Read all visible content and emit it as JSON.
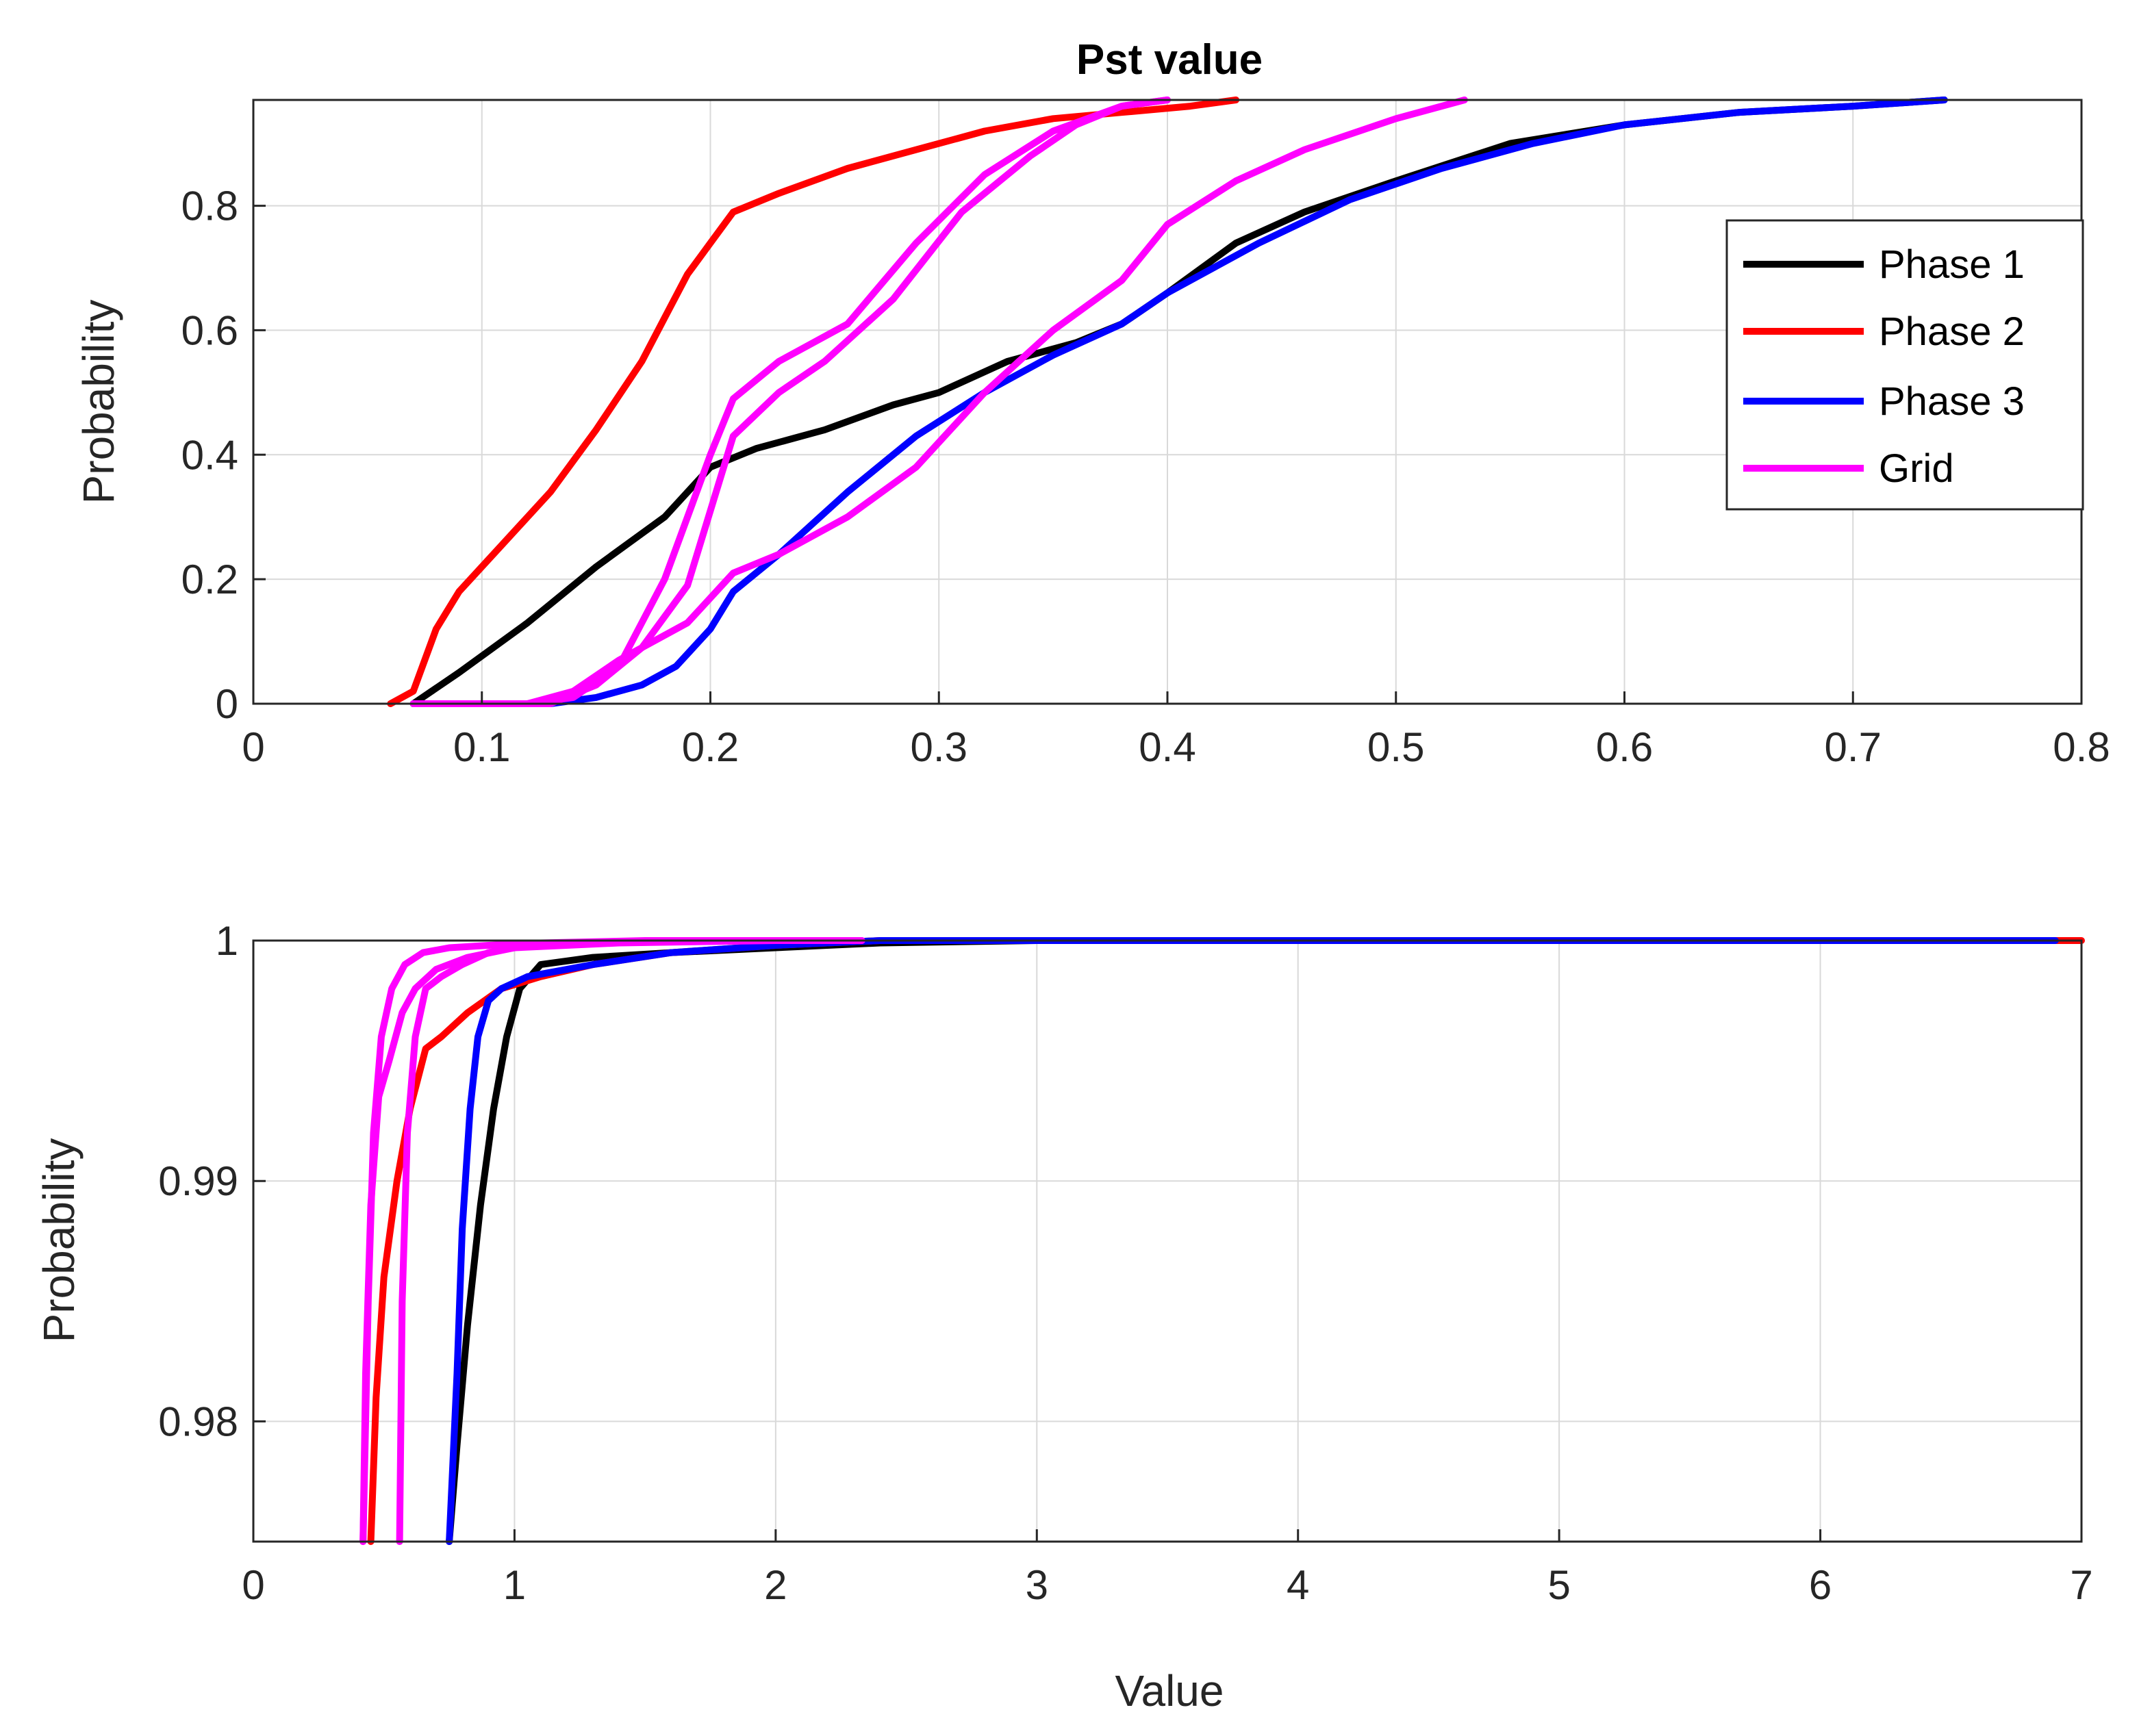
{
  "chart_data": [
    {
      "type": "line",
      "title": "Pst value",
      "xlabel": "",
      "ylabel": "Probability",
      "xlim": [
        0,
        0.8
      ],
      "ylim": [
        0,
        0.97
      ],
      "grid": true,
      "xticks": [
        0,
        0.1,
        0.2,
        0.3,
        0.4,
        0.5,
        0.6,
        0.7,
        0.8
      ],
      "xtick_labels": [
        "0",
        "0.1",
        "0.2",
        "0.3",
        "0.4",
        "0.5",
        "0.6",
        "0.7",
        "0.8"
      ],
      "yticks": [
        0,
        0.2,
        0.4,
        0.6,
        0.8
      ],
      "ytick_labels": [
        "0",
        "0.2",
        "0.4",
        "0.6",
        "0.8"
      ],
      "legend": {
        "location": "right",
        "entries": [
          "Phase 1",
          "Phase 2",
          "Phase 3",
          "Grid"
        ]
      },
      "series": [
        {
          "name": "Phase 1",
          "color": "#000000",
          "legend": true,
          "x": [
            0.07,
            0.09,
            0.12,
            0.15,
            0.18,
            0.2,
            0.22,
            0.25,
            0.28,
            0.3,
            0.33,
            0.36,
            0.38,
            0.4,
            0.43,
            0.46,
            0.5,
            0.55,
            0.6,
            0.65,
            0.7,
            0.74
          ],
          "y": [
            0,
            0.05,
            0.13,
            0.22,
            0.3,
            0.38,
            0.41,
            0.44,
            0.48,
            0.5,
            0.55,
            0.58,
            0.61,
            0.66,
            0.74,
            0.79,
            0.84,
            0.9,
            0.93,
            0.95,
            0.96,
            0.97
          ]
        },
        {
          "name": "Phase 2",
          "color": "#ff0000",
          "legend": true,
          "x": [
            0.06,
            0.07,
            0.08,
            0.09,
            0.11,
            0.13,
            0.15,
            0.17,
            0.18,
            0.19,
            0.2,
            0.21,
            0.23,
            0.26,
            0.29,
            0.32,
            0.35,
            0.38,
            0.41,
            0.43
          ],
          "y": [
            0,
            0.02,
            0.12,
            0.18,
            0.26,
            0.34,
            0.44,
            0.55,
            0.62,
            0.69,
            0.74,
            0.79,
            0.82,
            0.86,
            0.89,
            0.92,
            0.94,
            0.95,
            0.96,
            0.97
          ]
        },
        {
          "name": "Phase 3",
          "color": "#0000ff",
          "legend": true,
          "x": [
            0.07,
            0.1,
            0.13,
            0.15,
            0.17,
            0.185,
            0.2,
            0.21,
            0.23,
            0.26,
            0.29,
            0.32,
            0.35,
            0.38,
            0.4,
            0.44,
            0.48,
            0.52,
            0.56,
            0.6,
            0.65,
            0.7,
            0.74
          ],
          "y": [
            0,
            0,
            0,
            0.01,
            0.03,
            0.06,
            0.12,
            0.18,
            0.24,
            0.34,
            0.43,
            0.5,
            0.56,
            0.61,
            0.66,
            0.74,
            0.81,
            0.86,
            0.9,
            0.93,
            0.95,
            0.96,
            0.97
          ]
        },
        {
          "name": "Grid",
          "color": "#ff00ff",
          "legend": true,
          "x": [
            0.07,
            0.12,
            0.14,
            0.16,
            0.18,
            0.2,
            0.21,
            0.23,
            0.26,
            0.29,
            0.32,
            0.35,
            0.38,
            0.4
          ],
          "y": [
            0,
            0,
            0.01,
            0.06,
            0.2,
            0.4,
            0.49,
            0.55,
            0.61,
            0.74,
            0.85,
            0.92,
            0.96,
            0.97
          ]
        },
        {
          "name": "Grid",
          "color": "#ff00ff",
          "legend": false,
          "x": [
            0.07,
            0.13,
            0.15,
            0.17,
            0.19,
            0.21,
            0.23,
            0.25,
            0.28,
            0.31,
            0.34,
            0.36,
            0.38,
            0.4
          ],
          "y": [
            0,
            0,
            0.03,
            0.09,
            0.19,
            0.43,
            0.5,
            0.55,
            0.65,
            0.79,
            0.88,
            0.93,
            0.96,
            0.97
          ]
        },
        {
          "name": "Grid",
          "color": "#ff00ff",
          "legend": false,
          "x": [
            0.07,
            0.12,
            0.14,
            0.16,
            0.19,
            0.21,
            0.23,
            0.26,
            0.29,
            0.32,
            0.35,
            0.38,
            0.4,
            0.43,
            0.46,
            0.5,
            0.53
          ],
          "y": [
            0,
            0,
            0.02,
            0.07,
            0.13,
            0.21,
            0.24,
            0.3,
            0.38,
            0.5,
            0.6,
            0.68,
            0.77,
            0.84,
            0.89,
            0.94,
            0.97
          ]
        }
      ]
    },
    {
      "type": "line",
      "title": "",
      "xlabel": "Value",
      "ylabel": "Probability",
      "xlim": [
        0,
        7
      ],
      "ylim": [
        0.975,
        1.0
      ],
      "grid": true,
      "xticks": [
        0,
        1,
        2,
        3,
        4,
        5,
        6,
        7
      ],
      "xtick_labels": [
        "0",
        "1",
        "2",
        "3",
        "4",
        "5",
        "6",
        "7"
      ],
      "yticks": [
        0.98,
        0.99,
        1.0
      ],
      "ytick_labels": [
        "0.98",
        "0.99",
        "1"
      ],
      "series": [
        {
          "name": "Phase 1",
          "color": "#000000",
          "x": [
            0.75,
            0.78,
            0.82,
            0.87,
            0.92,
            0.97,
            1.02,
            1.1,
            1.3,
            1.6,
            2.0,
            2.4,
            3.0,
            4.0,
            6.95
          ],
          "y": [
            0.975,
            0.979,
            0.984,
            0.989,
            0.993,
            0.996,
            0.998,
            0.999,
            0.9993,
            0.9995,
            0.9997,
            0.9999,
            1.0,
            1.0,
            1.0
          ]
        },
        {
          "name": "Phase 2",
          "color": "#ff0000",
          "x": [
            0.45,
            0.47,
            0.5,
            0.55,
            0.6,
            0.66,
            0.72,
            0.82,
            0.95,
            1.1,
            1.3,
            1.6,
            2.0,
            2.4,
            3.0,
            7.0
          ],
          "y": [
            0.975,
            0.981,
            0.986,
            0.99,
            0.993,
            0.9955,
            0.996,
            0.997,
            0.998,
            0.9985,
            0.999,
            0.9995,
            0.9998,
            1.0,
            1.0,
            1.0
          ]
        },
        {
          "name": "Phase 3",
          "color": "#0000ff",
          "x": [
            0.75,
            0.78,
            0.8,
            0.83,
            0.86,
            0.9,
            0.95,
            1.05,
            1.3,
            1.6,
            2.0,
            2.4,
            3.0,
            4.0,
            6.9
          ],
          "y": [
            0.975,
            0.982,
            0.988,
            0.993,
            0.996,
            0.9975,
            0.998,
            0.9985,
            0.999,
            0.9995,
            0.9998,
            1.0,
            1.0,
            1.0,
            1.0
          ]
        },
        {
          "name": "Grid",
          "color": "#ff00ff",
          "x": [
            0.42,
            0.44,
            0.46,
            0.49,
            0.53,
            0.58,
            0.65,
            0.75,
            0.9,
            1.1,
            1.5,
            2.0,
            2.33
          ],
          "y": [
            0.975,
            0.985,
            0.992,
            0.996,
            0.998,
            0.999,
            0.9995,
            0.9997,
            0.9998,
            0.9999,
            1.0,
            1.0,
            1.0
          ]
        },
        {
          "name": "Grid",
          "color": "#ff00ff",
          "x": [
            0.42,
            0.43,
            0.45,
            0.48,
            0.52,
            0.57,
            0.62,
            0.7,
            0.82,
            1.0,
            1.4,
            2.0,
            2.33
          ],
          "y": [
            0.975,
            0.982,
            0.989,
            0.9935,
            0.995,
            0.997,
            0.998,
            0.9988,
            0.9993,
            0.9997,
            0.9999,
            1.0,
            1.0
          ]
        },
        {
          "name": "Grid",
          "color": "#ff00ff",
          "x": [
            0.56,
            0.57,
            0.59,
            0.62,
            0.66,
            0.72,
            0.8,
            0.9,
            1.05,
            1.3,
            1.8,
            2.33
          ],
          "y": [
            0.975,
            0.985,
            0.992,
            0.996,
            0.998,
            0.9985,
            0.999,
            0.9995,
            0.9998,
            0.9999,
            1.0,
            1.0
          ]
        }
      ]
    }
  ]
}
